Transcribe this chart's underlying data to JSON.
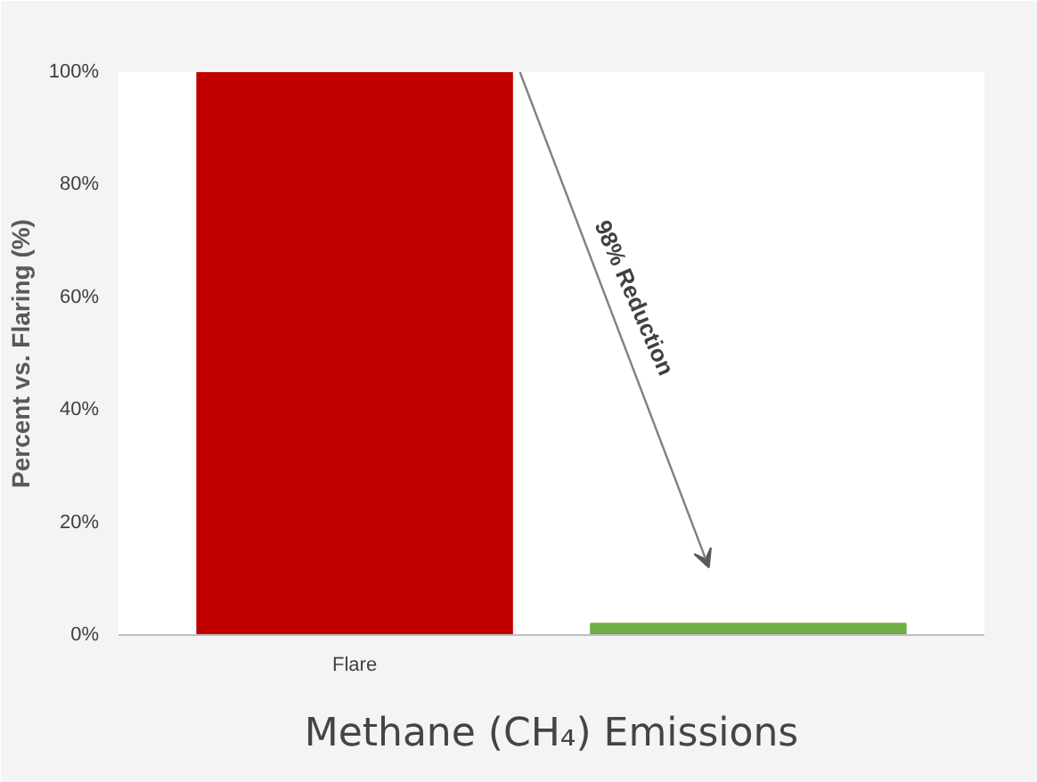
{
  "chart_data": {
    "type": "bar",
    "title": "Methane (CH₄) Emissions",
    "ylabel": "Percent vs. Flaring (%)",
    "categories": [
      "Flare",
      null
    ],
    "values": [
      100,
      2
    ],
    "colors": [
      "#c00000",
      "#70ad47"
    ],
    "ylim": [
      0,
      100
    ],
    "yticks": [
      {
        "value": 0,
        "label": "0%"
      },
      {
        "value": 20,
        "label": "20%"
      },
      {
        "value": 40,
        "label": "40%"
      },
      {
        "value": 60,
        "label": "60%"
      },
      {
        "value": 80,
        "label": "80%"
      },
      {
        "value": 100,
        "label": "100%"
      }
    ],
    "grid": false,
    "annotations": [
      "98% Reduction"
    ]
  }
}
